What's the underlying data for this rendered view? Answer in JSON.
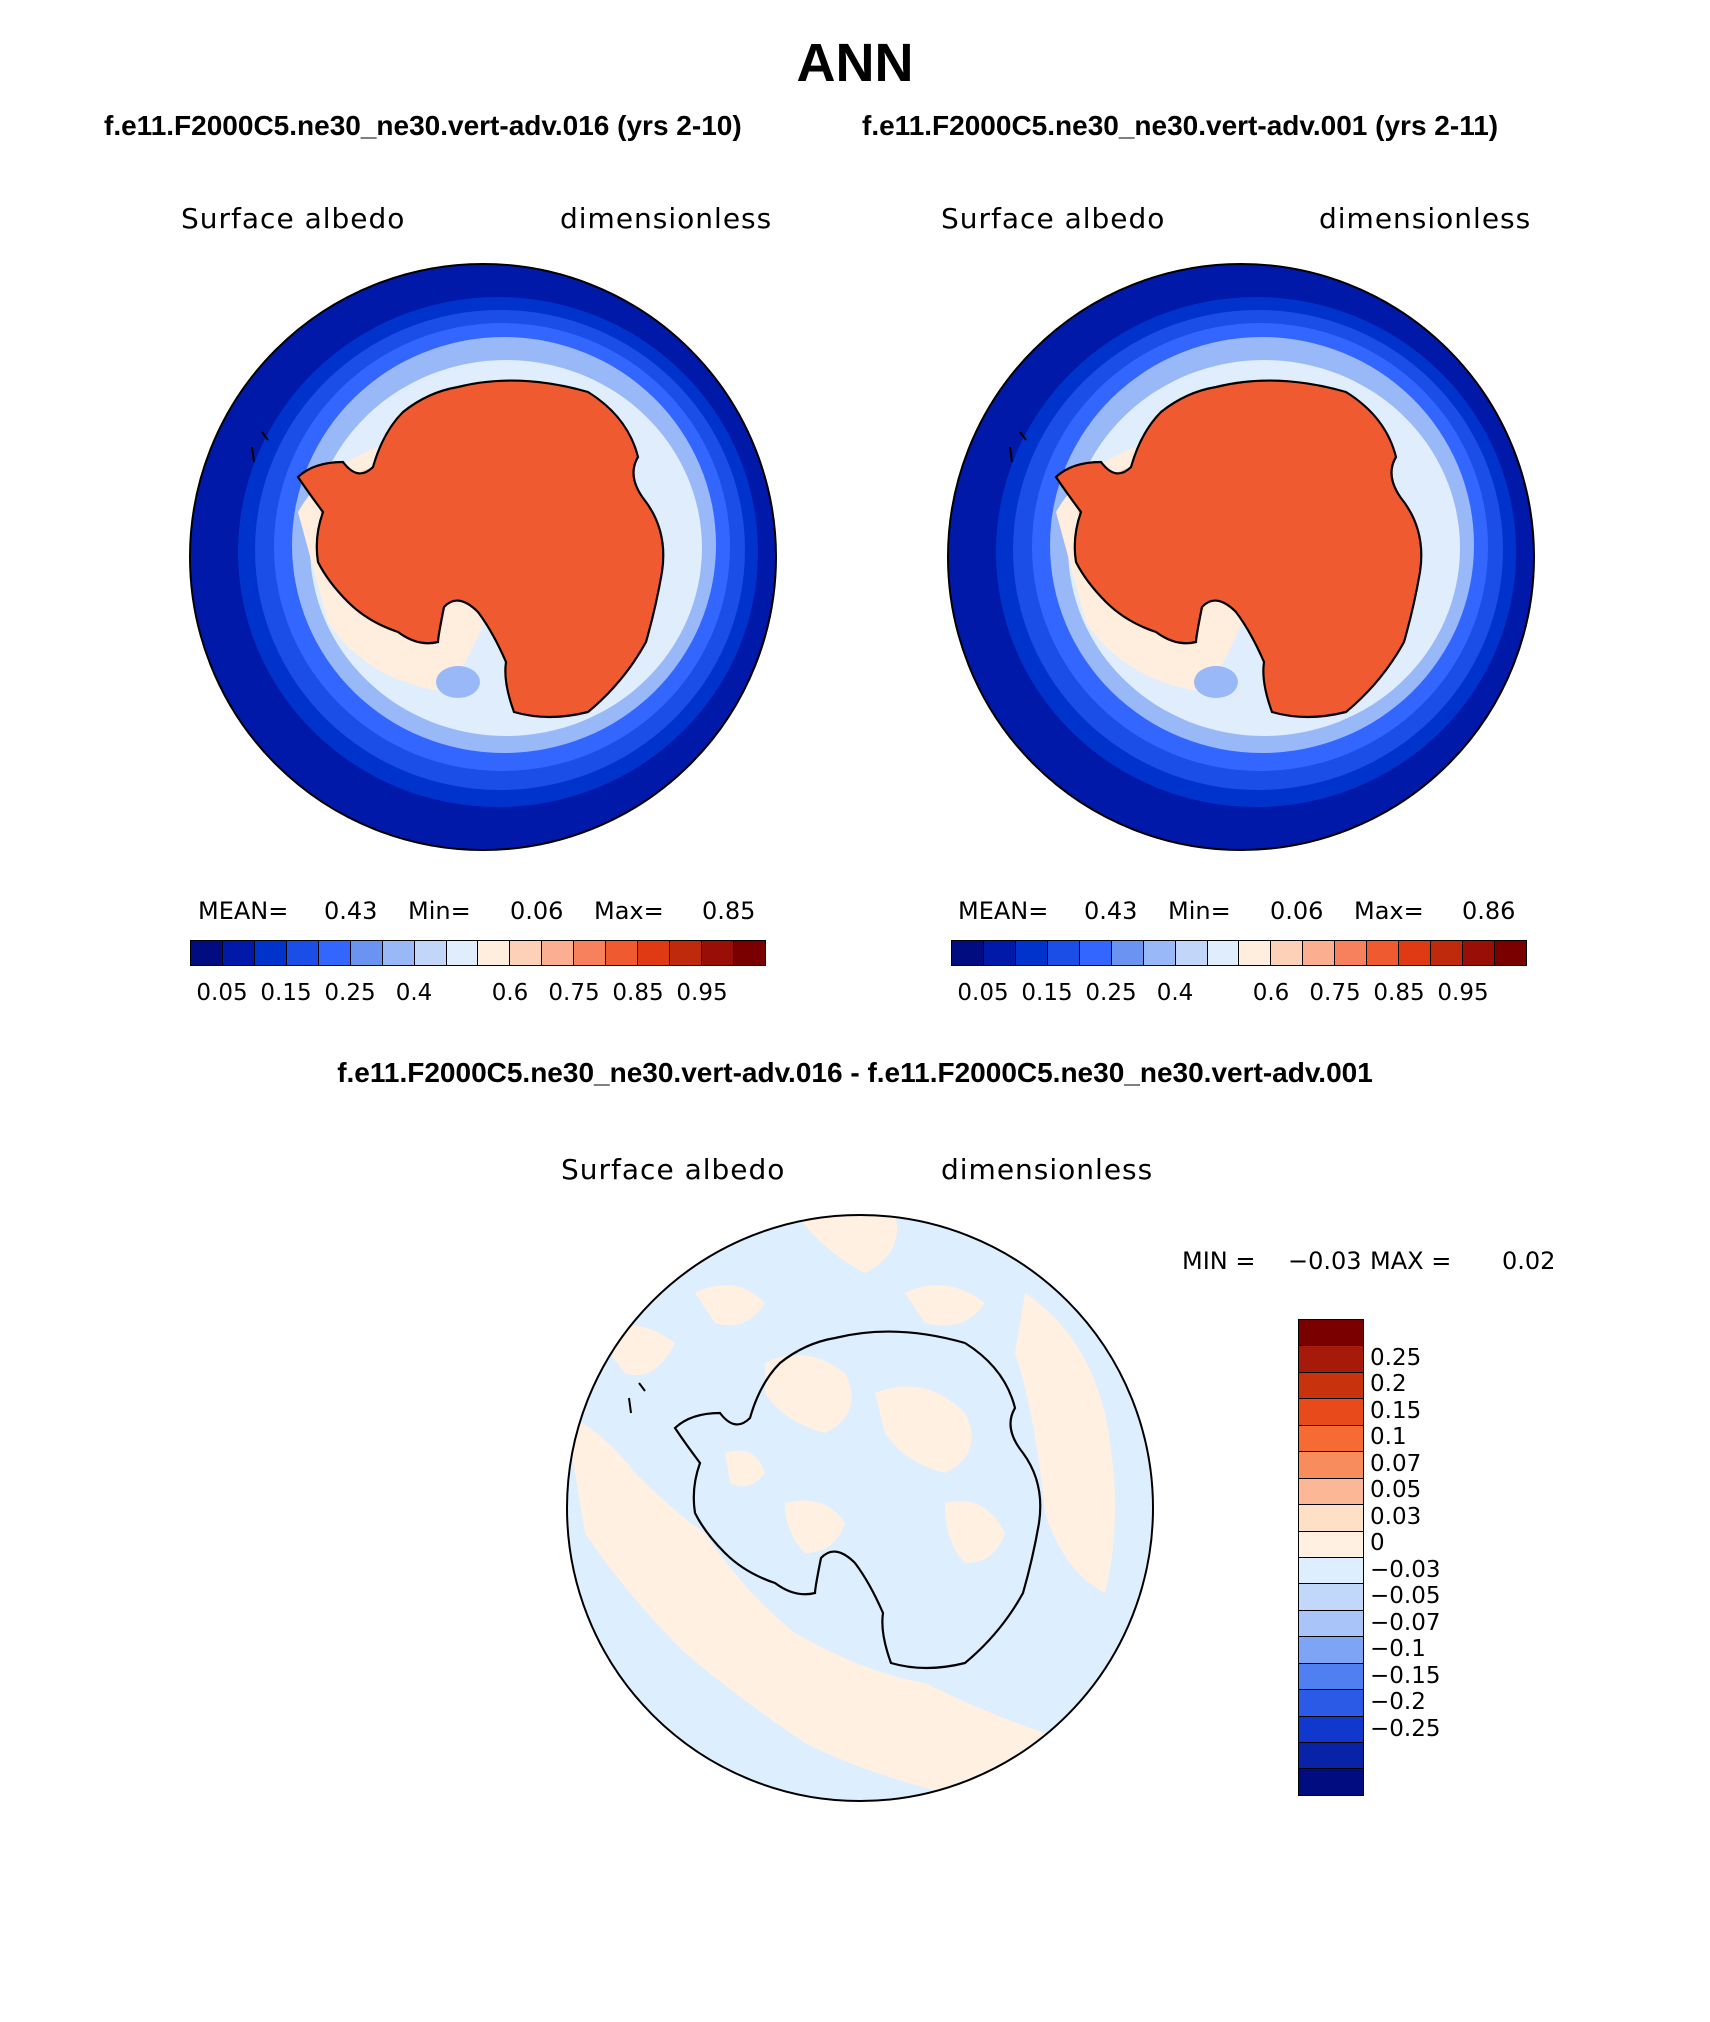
{
  "title": "ANN",
  "panels": [
    {
      "subtitle": "f.e11.F2000C5.ne30_ne30.vert-adv.016 (yrs 2-10)",
      "left_label": "Surface albedo",
      "right_label": "dimensionless",
      "stats": {
        "mean_label": "MEAN=",
        "mean": "0.43",
        "min_label": "Min=",
        "min": "0.06",
        "max_label": "Max=",
        "max": "0.85"
      }
    },
    {
      "subtitle": "f.e11.F2000C5.ne30_ne30.vert-adv.001 (yrs 2-11)",
      "left_label": "Surface albedo",
      "right_label": "dimensionless",
      "stats": {
        "mean_label": "MEAN=",
        "mean": "0.43",
        "min_label": "Min=",
        "min": "0.06",
        "max_label": "Max=",
        "max": "0.86"
      }
    }
  ],
  "abs_colorbar": {
    "colors": [
      "#000c80",
      "#0019a8",
      "#0033cc",
      "#1a4ee6",
      "#3366ff",
      "#6b94f2",
      "#99b8f7",
      "#c2d6fa",
      "#e0edfc",
      "#ffeedd",
      "#fdd0b8",
      "#fcae91",
      "#f8815d",
      "#f05a30",
      "#e03a14",
      "#c02a0c",
      "#990f08",
      "#7a0000"
    ],
    "ticks": [
      "0.05",
      "0.15",
      "0.25",
      "0.4",
      "0.6",
      "0.75",
      "0.85",
      "0.95"
    ]
  },
  "diff_panel": {
    "title": "f.e11.F2000C5.ne30_ne30.vert-adv.016 - f.e11.F2000C5.ne30_ne30.vert-adv.001",
    "left_label": "Surface albedo",
    "right_label": "dimensionless",
    "min_label": "MIN =",
    "min": "−0.03",
    "max_label": "MAX =",
    "max": "0.02"
  },
  "diff_colorbar": {
    "colors": [
      "#7a0000",
      "#a51a08",
      "#c8320c",
      "#e84a1c",
      "#f66a34",
      "#f98c5c",
      "#fcb896",
      "#fde0c6",
      "#fff0e2",
      "#ddeeff",
      "#c2d8fa",
      "#a8c4f8",
      "#7ea4f5",
      "#4f7ff0",
      "#2a5ae6",
      "#1038cc",
      "#0822a8",
      "#000c80"
    ],
    "ticks": [
      "0.25",
      "0.2",
      "0.15",
      "0.1",
      "0.07",
      "0.05",
      "0.03",
      "0",
      "−0.03",
      "−0.05",
      "−0.07",
      "−0.1",
      "−0.15",
      "−0.2",
      "−0.25"
    ]
  }
}
